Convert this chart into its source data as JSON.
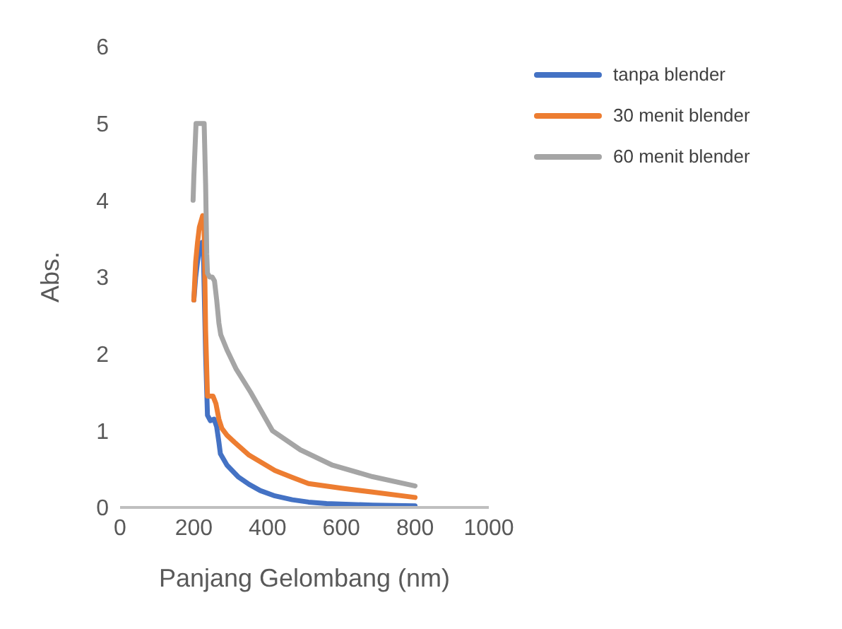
{
  "chart_data": {
    "type": "line",
    "xlabel": "Panjang Gelombang (nm)",
    "ylabel": "Abs.",
    "xlim": [
      0,
      1000
    ],
    "xticks": [
      0,
      200,
      400,
      600,
      800,
      1000
    ],
    "ylim": [
      0,
      6
    ],
    "yticks": [
      0,
      1,
      2,
      3,
      4,
      5,
      6
    ],
    "grid": false,
    "legend": "top right",
    "marker": "none",
    "line_style": "solid",
    "series": [
      {
        "name": "tanpa blender",
        "color": "#4472c4",
        "x": [
          200,
          205,
          210,
          215,
          222,
          226,
          232,
          237,
          245,
          255,
          262,
          268,
          272,
          290,
          320,
          350,
          380,
          420,
          467,
          511,
          560,
          685,
          800
        ],
        "values": [
          2.7,
          3.0,
          3.2,
          3.35,
          3.45,
          3.3,
          2.0,
          1.2,
          1.13,
          1.15,
          1.05,
          0.85,
          0.7,
          0.55,
          0.4,
          0.3,
          0.22,
          0.15,
          0.1,
          0.07,
          0.05,
          0.03,
          0.02
        ]
      },
      {
        "name": "30 menit blender",
        "color": "#ed7d31",
        "x": [
          200,
          205,
          210,
          215,
          224,
          228,
          232,
          237,
          245,
          252,
          260,
          268,
          276,
          290,
          310,
          350,
          420,
          467,
          511,
          600,
          685,
          800
        ],
        "values": [
          2.7,
          3.2,
          3.45,
          3.65,
          3.8,
          3.6,
          2.3,
          1.45,
          1.45,
          1.45,
          1.35,
          1.15,
          1.03,
          0.94,
          0.85,
          0.68,
          0.48,
          0.39,
          0.31,
          0.25,
          0.2,
          0.13
        ]
      },
      {
        "name": "60 menit blender",
        "color": "#a5a5a5",
        "x": [
          198,
          200,
          206,
          215,
          228,
          232,
          235,
          237,
          243,
          250,
          256,
          262,
          268,
          273,
          290,
          315,
          354,
          413,
          489,
          576,
          685,
          800
        ],
        "values": [
          4.0,
          4.3,
          5.0,
          5.0,
          5.0,
          4.2,
          3.3,
          3.05,
          3.0,
          3.0,
          2.95,
          2.7,
          2.4,
          2.25,
          2.05,
          1.8,
          1.5,
          1.0,
          0.75,
          0.55,
          0.4,
          0.28
        ]
      }
    ]
  }
}
